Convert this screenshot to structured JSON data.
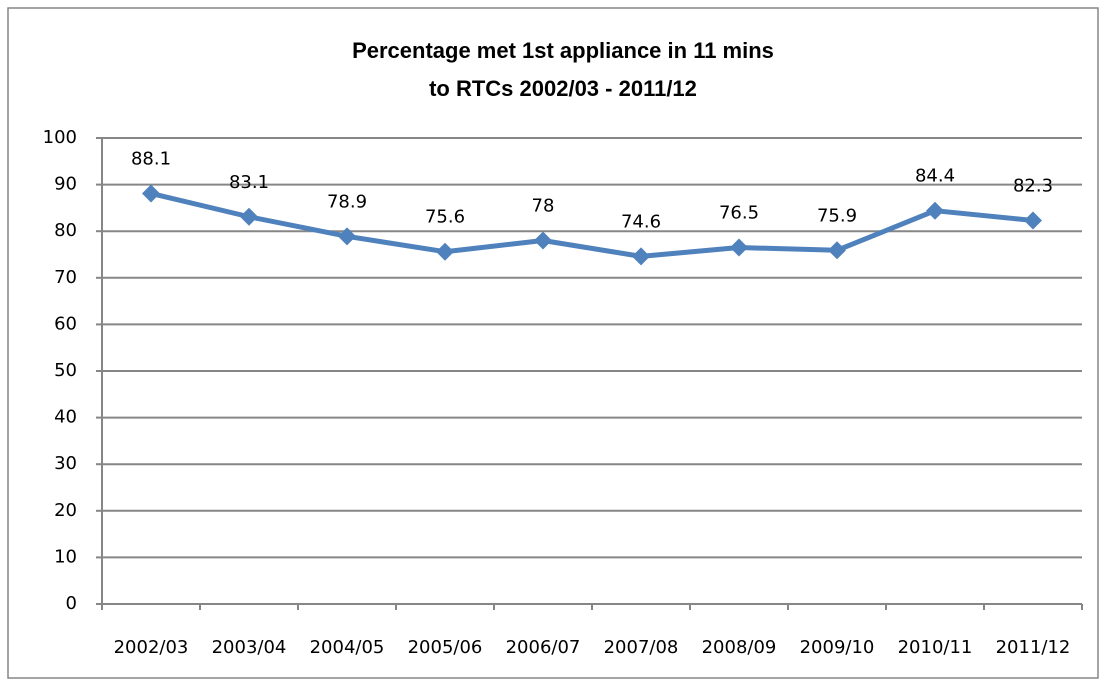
{
  "chart_data": {
    "type": "line",
    "title": [
      "Percentage met 1st appliance in 11 mins",
      "to RTCs 2002/03 - 2011/12"
    ],
    "categories": [
      "2002/03",
      "2003/04",
      "2004/05",
      "2005/06",
      "2006/07",
      "2007/08",
      "2008/09",
      "2009/10",
      "2010/11",
      "2011/12"
    ],
    "values": [
      88.1,
      83.1,
      78.9,
      75.6,
      78,
      74.6,
      76.5,
      75.9,
      84.4,
      82.3
    ],
    "color": "#4f81bd",
    "ylim": [
      0,
      100
    ],
    "yticks": [
      0,
      10,
      20,
      30,
      40,
      50,
      60,
      70,
      80,
      90,
      100
    ],
    "grid": true
  }
}
